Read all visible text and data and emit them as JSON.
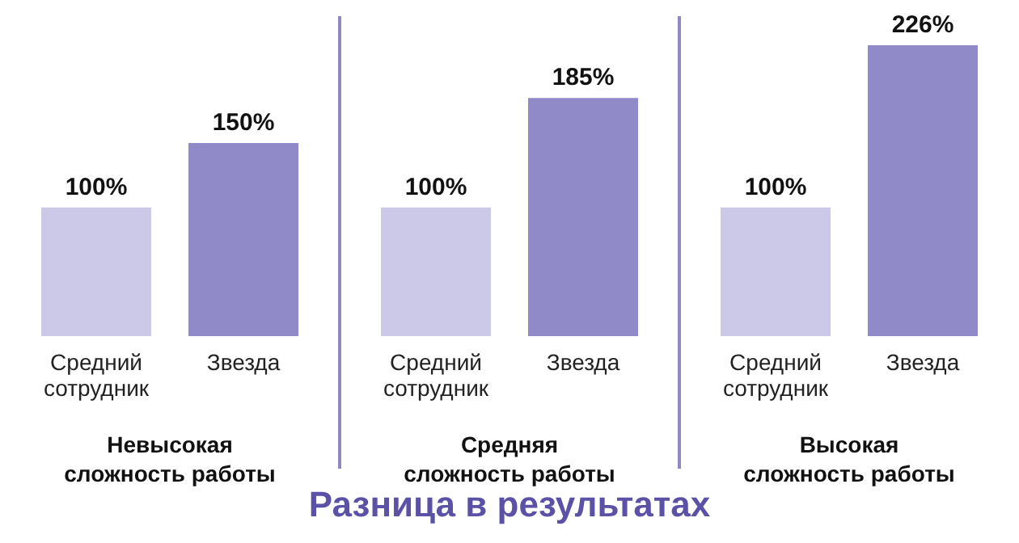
{
  "chart_data": [
    {
      "type": "bar",
      "categories": [
        "Средний сотрудник",
        "Звезда"
      ],
      "xlabel": "Невысокая сложность работы",
      "values": [
        100,
        150
      ],
      "colors": [
        "#cbc8e8",
        "#918ac9"
      ],
      "value_labels": [
        "100%",
        "150%"
      ]
    },
    {
      "type": "bar",
      "categories": [
        "Средний сотрудник",
        "Звезда"
      ],
      "xlabel": "Средняя сложность работы",
      "values": [
        100,
        185
      ],
      "colors": [
        "#cbc8e8",
        "#918ac9"
      ],
      "value_labels": [
        "100%",
        "185%"
      ],
      "annotations": [
        "Разница в результатах"
      ]
    },
    {
      "type": "bar",
      "categories": [
        "Средний сотрудник",
        "Звезда"
      ],
      "xlabel": "Высокая сложность работы",
      "values": [
        100,
        226
      ],
      "colors": [
        "#cbc8e8",
        "#918ac9"
      ],
      "value_labels": [
        "100%",
        "226%"
      ]
    }
  ]
}
